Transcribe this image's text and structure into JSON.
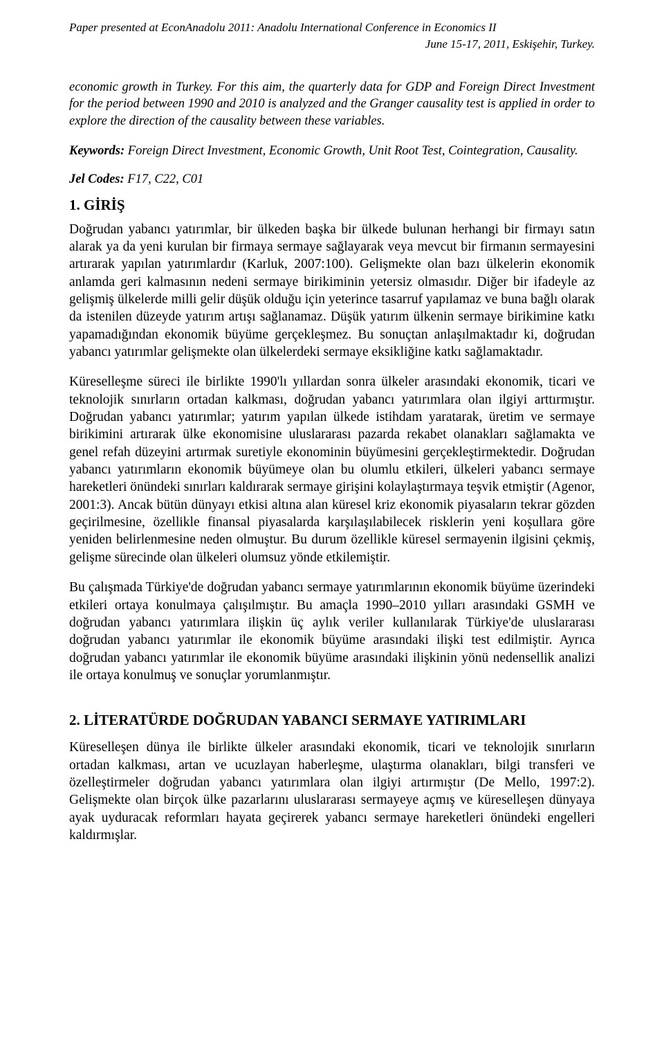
{
  "header": {
    "conference_note": "Paper presented at EconAnadolu 2011: Anadolu International Conference in Economics II",
    "date_location": "June 15-17, 2011, Eskişehir, Turkey."
  },
  "abstract": {
    "text": "economic growth in Turkey. For this aim, the quarterly data for GDP and Foreign Direct Investment for the period between 1990 and 2010 is analyzed and the Granger causality test is applied in order to explore the direction of the causality between these variables."
  },
  "keywords": {
    "label": "Keywords:",
    "text": " Foreign Direct Investment, Economic Growth, Unit Root Test, Cointegration, Causality."
  },
  "jel": {
    "label": "Jel Codes:",
    "text": " F17, C22, C01"
  },
  "section1": {
    "heading": "1. GİRİŞ",
    "p1": "Doğrudan yabancı yatırımlar, bir ülkeden başka bir ülkede bulunan herhangi bir firmayı satın alarak ya da yeni kurulan bir firmaya sermaye sağlayarak veya mevcut bir firmanın sermayesini artırarak yapılan yatırımlardır (Karluk, 2007:100). Gelişmekte olan bazı ülkelerin ekonomik anlamda geri kalmasının nedeni sermaye birikiminin yetersiz olmasıdır. Diğer bir ifadeyle az gelişmiş ülkelerde milli gelir düşük olduğu için yeterince tasarruf yapılamaz ve buna bağlı olarak da istenilen düzeyde yatırım artışı sağlanamaz. Düşük yatırım ülkenin sermaye birikimine katkı yapamadığından ekonomik büyüme gerçekleşmez. Bu sonuçtan anlaşılmaktadır ki, doğrudan yabancı yatırımlar gelişmekte olan ülkelerdeki sermaye eksikliğine katkı sağlamaktadır.",
    "p2": "Küreselleşme süreci ile birlikte 1990'lı yıllardan sonra ülkeler arasındaki ekonomik, ticari ve teknolojik sınırların ortadan kalkması, doğrudan yabancı yatırımlara olan ilgiyi arttırmıştır. Doğrudan yabancı yatırımlar; yatırım yapılan ülkede istihdam yaratarak, üretim ve sermaye birikimini artırarak ülke ekonomisine uluslararası pazarda rekabet olanakları sağlamakta ve genel refah düzeyini artırmak suretiyle ekonominin büyümesini gerçekleştirmektedir. Doğrudan yabancı yatırımların ekonomik büyümeye olan bu olumlu etkileri, ülkeleri yabancı sermaye hareketleri önündeki sınırları kaldırarak sermaye girişini kolaylaştırmaya teşvik etmiştir (Agenor, 2001:3). Ancak bütün dünyayı etkisi altına alan küresel kriz ekonomik piyasaların tekrar gözden geçirilmesine, özellikle finansal piyasalarda karşılaşılabilecek risklerin yeni koşullara göre yeniden belirlenmesine neden olmuştur. Bu durum özellikle küresel sermayenin ilgisini çekmiş, gelişme sürecinde olan ülkeleri olumsuz yönde etkilemiştir.",
    "p3": "Bu çalışmada Türkiye'de doğrudan yabancı sermaye yatırımlarının ekonomik büyüme üzerindeki etkileri ortaya konulmaya çalışılmıştır. Bu amaçla 1990–2010 yılları arasındaki GSMH ve doğrudan yabancı yatırımlara ilişkin üç aylık veriler kullanılarak Türkiye'de uluslararası doğrudan yabancı yatırımlar ile ekonomik büyüme arasındaki ilişki test edilmiştir. Ayrıca doğrudan yabancı yatırımlar ile ekonomik büyüme arasındaki ilişkinin yönü nedensellik analizi ile ortaya konulmuş ve sonuçlar yorumlanmıştır."
  },
  "section2": {
    "heading": "2. LİTERATÜRDE DOĞRUDAN YABANCI SERMAYE YATIRIMLARI",
    "p1": "Küreselleşen dünya ile birlikte ülkeler arasındaki ekonomik, ticari ve teknolojik sınırların ortadan kalkması, artan ve ucuzlayan haberleşme, ulaştırma olanakları, bilgi transferi ve özelleştirmeler doğrudan yabancı yatırımlara olan ilgiyi artırmıştır (De Mello, 1997:2). Gelişmekte olan birçok ülke pazarlarını uluslararası sermayeye açmış ve küreselleşen dünyaya ayak uyduracak reformları hayata geçirerek yabancı sermaye hareketleri önündeki engelleri kaldırmışlar."
  }
}
